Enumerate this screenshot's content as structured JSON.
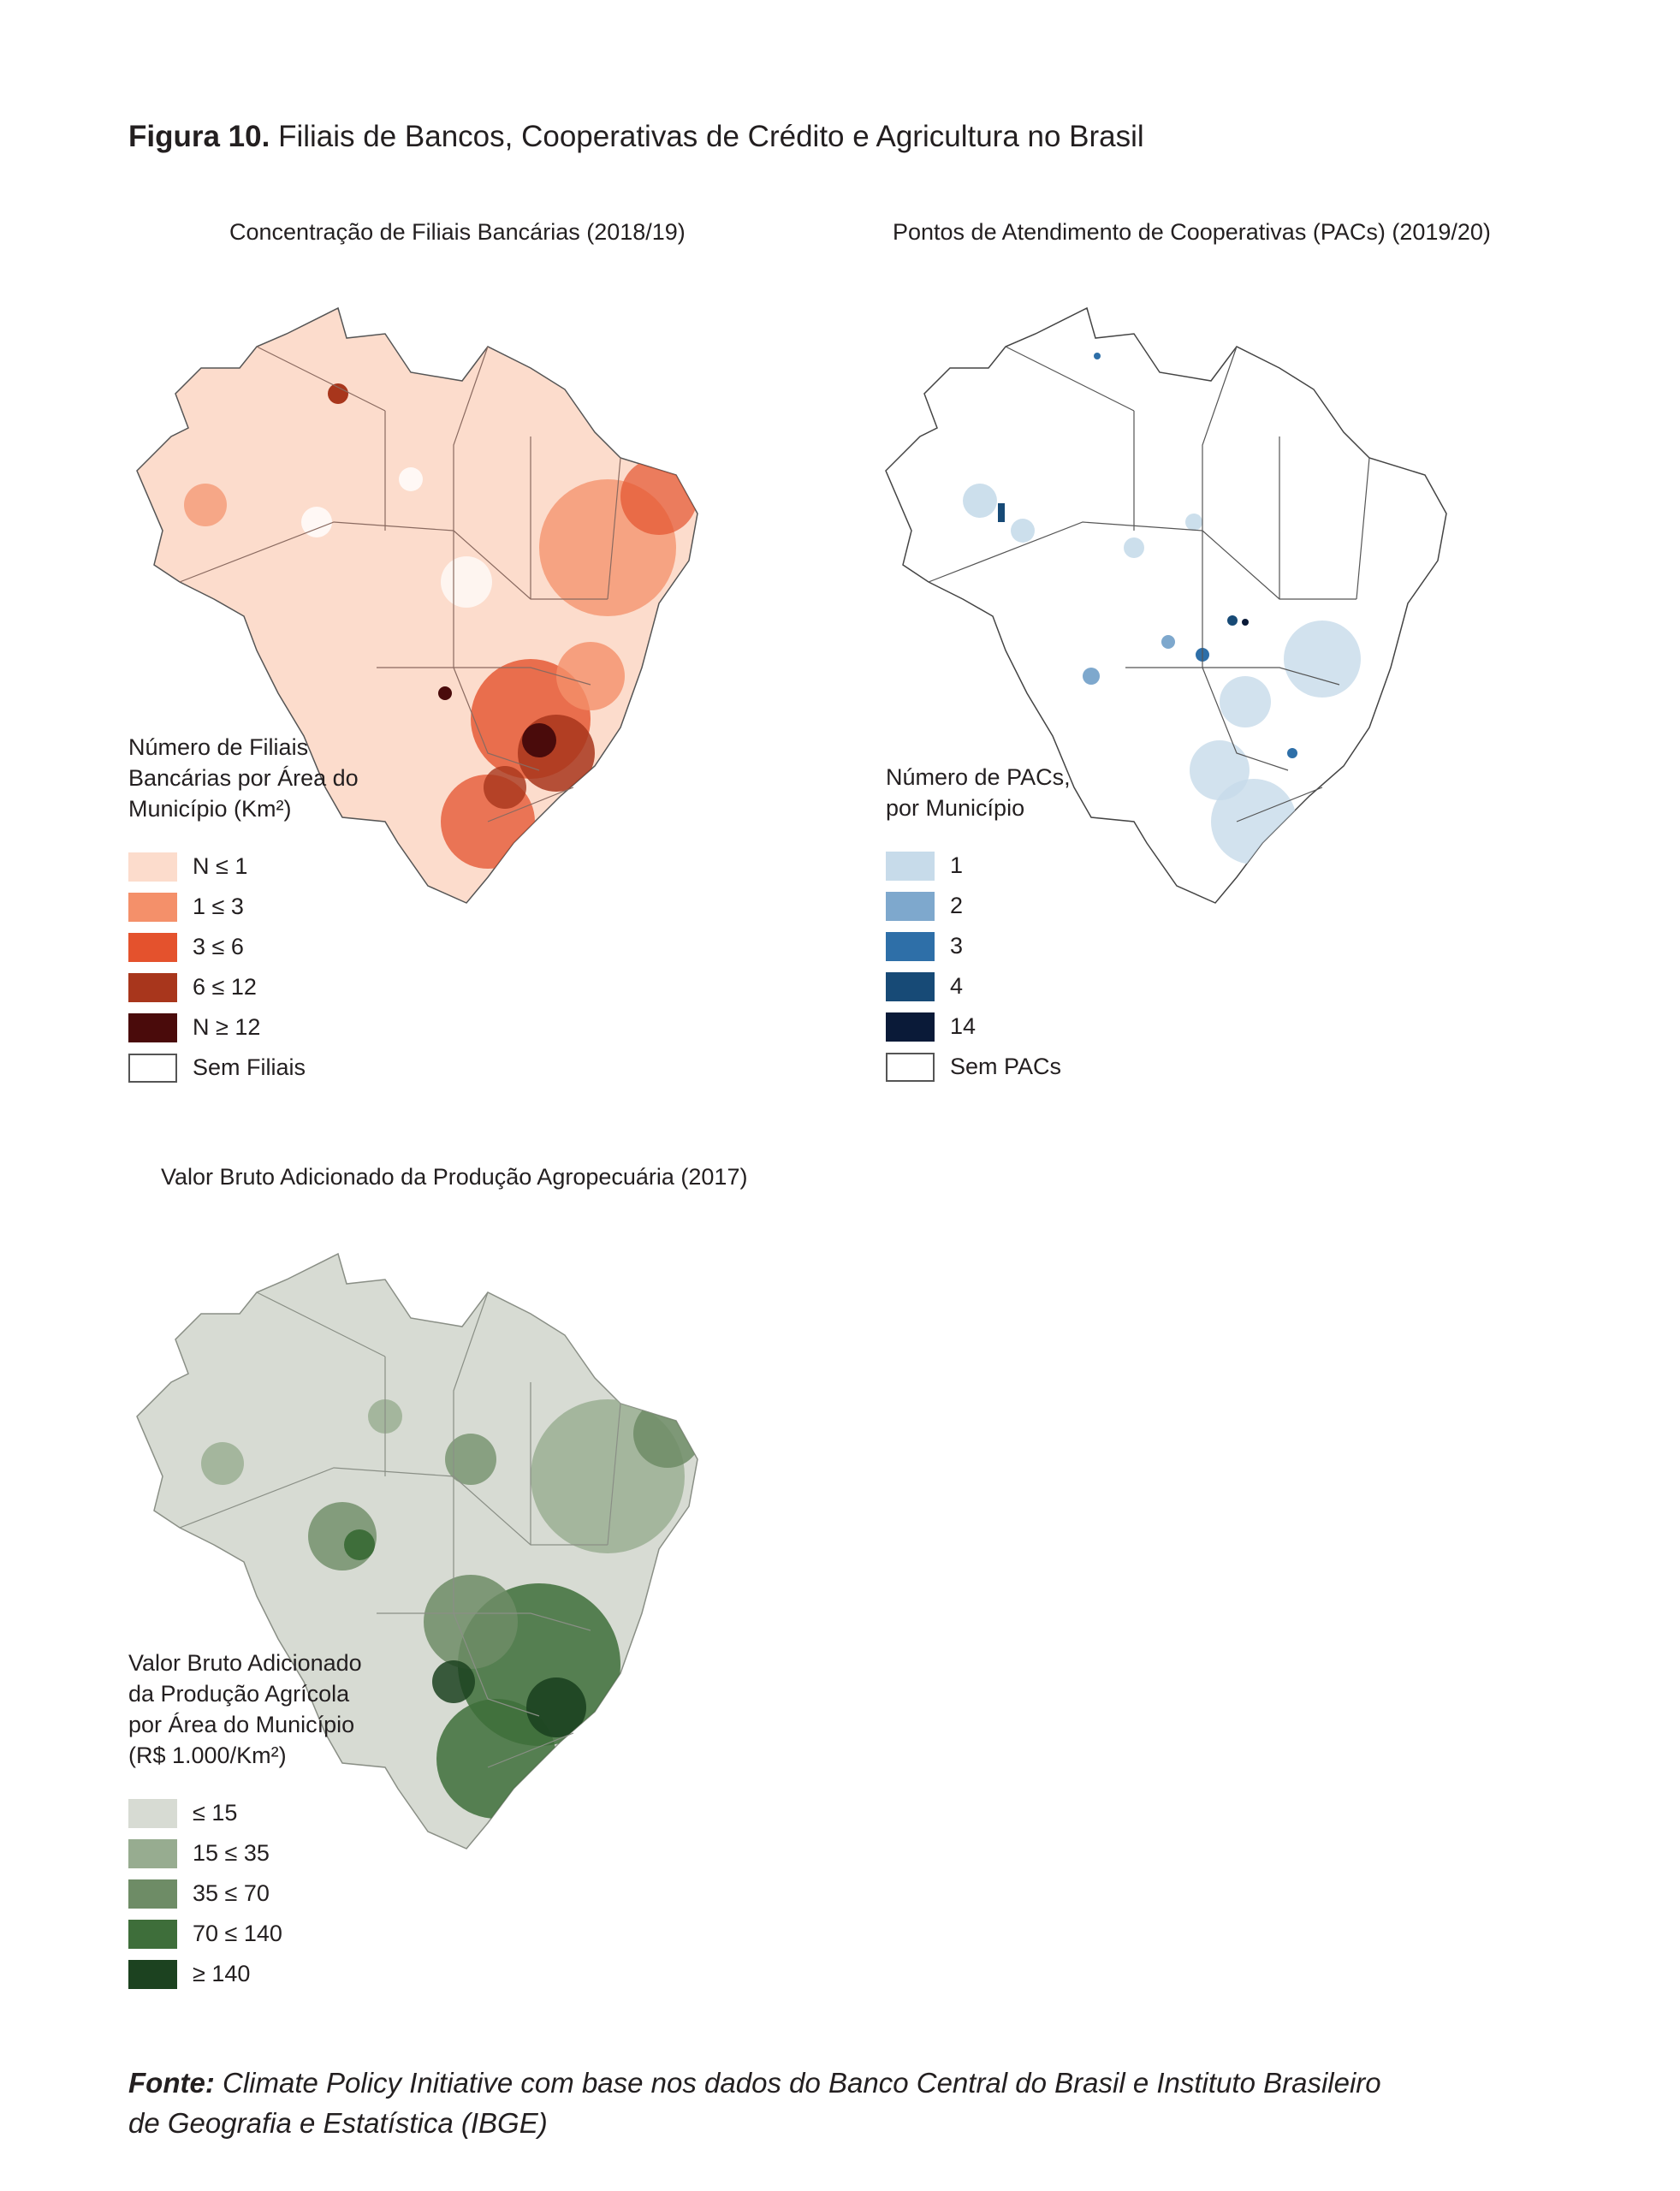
{
  "figure": {
    "label": "Figura 10.",
    "title": "Filiais de Bancos, Cooperativas de Crédito e Agricultura no Brasil"
  },
  "maps": [
    {
      "title": "Concentração de Filiais Bancárias  (2018/19)",
      "legend_title": "Número de Filiais\nBancárias por Área do\nMunicípio (Km²)",
      "base_fill": "#fcdccc",
      "legend": [
        {
          "label": "N ≤ 1",
          "color": "#fcdccc"
        },
        {
          "label": "1 ≤ 3",
          "color": "#f4906a"
        },
        {
          "label": "3 ≤ 6",
          "color": "#e4522d"
        },
        {
          "label": "6 ≤ 12",
          "color": "#a8361c"
        },
        {
          "label": "N ≥ 12",
          "color": "#4a0b0b"
        },
        {
          "label": "Sem Filiais",
          "color": "#ffffff"
        }
      ]
    },
    {
      "title": "Pontos de Atendimento de Cooperativas  (PACs) (2019/20)",
      "legend_title": "Número de PACs,\npor Município",
      "base_fill": "#ffffff",
      "legend": [
        {
          "label": "1",
          "color": "#c7dbea"
        },
        {
          "label": "2",
          "color": "#7ea8cd"
        },
        {
          "label": "3",
          "color": "#2e6fa8"
        },
        {
          "label": "4",
          "color": "#174a76"
        },
        {
          "label": "14",
          "color": "#0a1a38"
        },
        {
          "label": "Sem PACs",
          "color": "#ffffff"
        }
      ]
    },
    {
      "title": "Valor Bruto Adicionado da Produção Agropecuária (2017)",
      "legend_title": "Valor Bruto Adicionado\nda Produção Agrícola\npor Área do Município\n(R$ 1.000/Km²)",
      "base_fill": "#d7dbd3",
      "legend": [
        {
          "label": " ≤ 15",
          "color": "#d7dbd3"
        },
        {
          "label": "15 ≤ 35",
          "color": "#97ac90"
        },
        {
          "label": "35 ≤ 70",
          "color": "#6e8c66"
        },
        {
          "label": "70 ≤ 140",
          "color": "#3e6e3a"
        },
        {
          "label": "≥ 140",
          "color": "#1c4220"
        }
      ]
    }
  ],
  "source": {
    "label": "Fonte:",
    "text": " Climate Policy Initiative com base nos dados do Banco Central do Brasil e Instituto Brasileiro de Geografia e Estatística (IBGE)"
  }
}
